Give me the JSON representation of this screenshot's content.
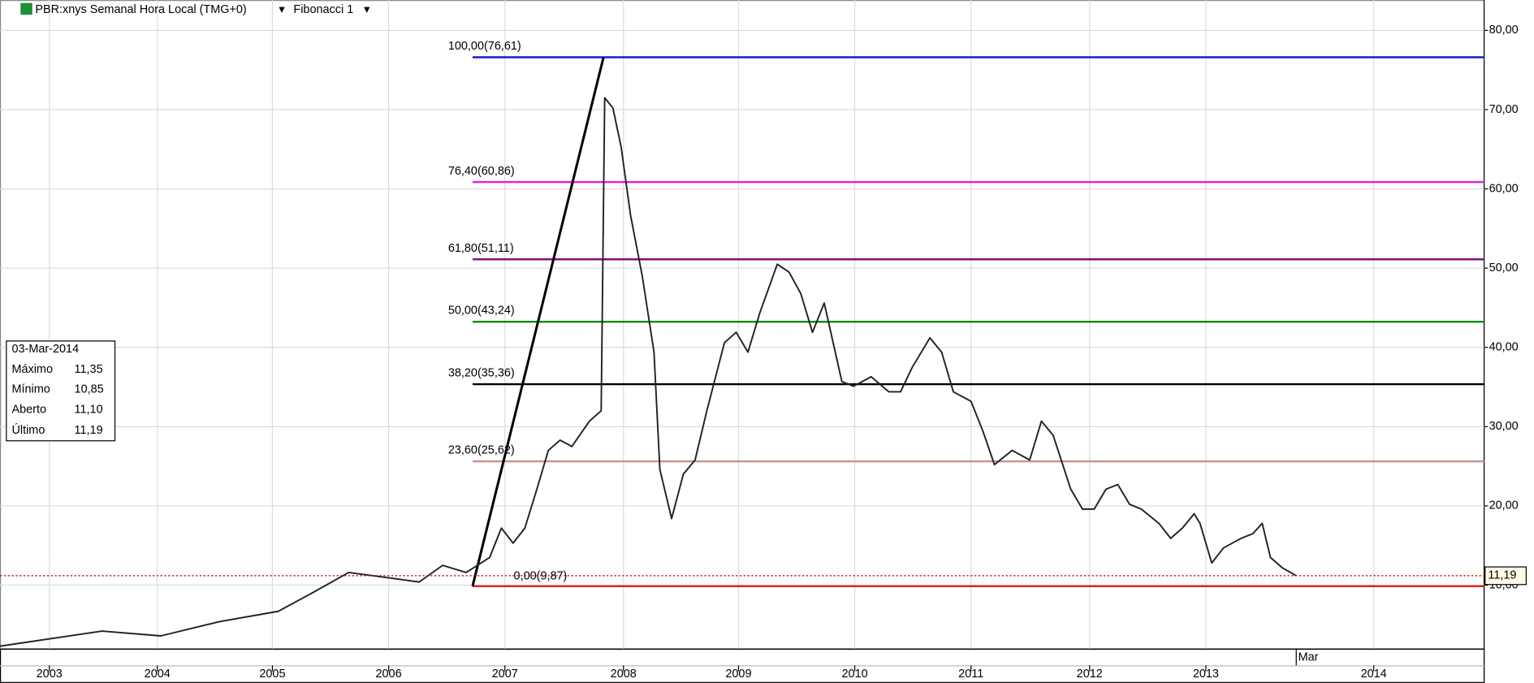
{
  "chart_data": {
    "type": "line",
    "title": "PBR:xnys Semanal Hora Local (TMG+0)",
    "study": "Fibonacci 1",
    "x": [
      2003.13,
      2004.0,
      2004.5,
      2005.0,
      2005.5,
      2005.8,
      2006.1,
      2006.4,
      2006.7,
      2006.9,
      2007.1,
      2007.3,
      2007.4,
      2007.5,
      2007.6,
      2007.7,
      2007.8,
      2007.9,
      2008.0,
      2008.15,
      2008.25,
      2008.28,
      2008.35,
      2008.42,
      2008.5,
      2008.6,
      2008.7,
      2008.75,
      2008.85,
      2008.95,
      2009.05,
      2009.15,
      2009.3,
      2009.4,
      2009.5,
      2009.6,
      2009.75,
      2009.85,
      2009.95,
      2010.05,
      2010.15,
      2010.3,
      2010.4,
      2010.55,
      2010.7,
      2010.8,
      2010.9,
      2011.05,
      2011.15,
      2011.25,
      2011.4,
      2011.5,
      2011.6,
      2011.75,
      2011.9,
      2012.0,
      2012.1,
      2012.25,
      2012.35,
      2012.45,
      2012.55,
      2012.65,
      2012.75,
      2012.85,
      2013.0,
      2013.1,
      2013.2,
      2013.3,
      2013.35,
      2013.45,
      2013.55,
      2013.7,
      2013.8,
      2013.88,
      2013.95,
      2014.05,
      2014.17
    ],
    "values": [
      2.3,
      4.2,
      3.6,
      5.4,
      6.7,
      9.1,
      11.6,
      11.0,
      10.4,
      12.5,
      11.6,
      13.5,
      17.2,
      15.3,
      17.2,
      22,
      27,
      28.3,
      27.5,
      30.7,
      32,
      71.5,
      70.2,
      65.3,
      56.7,
      49,
      39.4,
      24.6,
      18.4,
      24,
      25.8,
      32,
      40.6,
      41.9,
      39.4,
      44.3,
      50.5,
      49.5,
      46.8,
      41.9,
      45.6,
      35.7,
      35.1,
      36.3,
      34.4,
      34.4,
      37.5,
      41.2,
      39.4,
      34.4,
      33.2,
      29.5,
      25.2,
      27,
      25.8,
      30.7,
      28.9,
      22.1,
      19.6,
      19.6,
      22.1,
      22.7,
      20.2,
      19.6,
      17.8,
      15.9,
      17.2,
      19.0,
      17.8,
      12.8,
      14.7,
      15.9,
      16.5,
      17.8,
      13.5,
      12.2,
      11.19
    ],
    "color": "#222222",
    "xlim": [
      2003.13,
      2015.77
    ],
    "ylim": [
      1.98,
      83.83
    ],
    "xticks": [
      {
        "value": 2003.55,
        "label": "2003"
      },
      {
        "value": 2004.47,
        "label": "2004"
      },
      {
        "value": 2005.45,
        "label": "2005"
      },
      {
        "value": 2006.44,
        "label": "2006"
      },
      {
        "value": 2007.43,
        "label": "2007"
      },
      {
        "value": 2008.44,
        "label": "2008"
      },
      {
        "value": 2009.42,
        "label": "2009"
      },
      {
        "value": 2010.41,
        "label": "2010"
      },
      {
        "value": 2011.4,
        "label": "2011"
      },
      {
        "value": 2012.41,
        "label": "2012"
      },
      {
        "value": 2013.4,
        "label": "2013"
      },
      {
        "value": 2014.83,
        "label": "2014"
      }
    ],
    "month_ticks": [
      {
        "value": 2014.17,
        "label": "Mar"
      }
    ],
    "yticks": [
      {
        "value": 10,
        "label": "10,00"
      },
      {
        "value": 20,
        "label": "20,00"
      },
      {
        "value": 30,
        "label": "30,00"
      },
      {
        "value": 40,
        "label": "40,00"
      },
      {
        "value": 50,
        "label": "50,00"
      },
      {
        "value": 60,
        "label": "60,00"
      },
      {
        "value": 70,
        "label": "70,00"
      },
      {
        "value": 80,
        "label": "80,00"
      }
    ],
    "grid": true,
    "fib_anchor": {
      "x": [
        2007.155,
        2008.27
      ],
      "y": [
        9.87,
        76.61
      ]
    },
    "fib_levels": [
      {
        "label": "100,00(76,61)",
        "value": 76.61,
        "color": "#1a1acc"
      },
      {
        "label": "76,40(60,86)",
        "value": 60.86,
        "color": "#e61ee6"
      },
      {
        "label": "61,80(51,11)",
        "value": 51.11,
        "color": "#800080"
      },
      {
        "label": "50,00(43,24)",
        "value": 43.24,
        "color": "#118811"
      },
      {
        "label": "38,20(35,36)",
        "value": 35.36,
        "color": "#000000"
      },
      {
        "label": "23,60(25,62)",
        "value": 25.62,
        "color": "#c89090"
      },
      {
        "label": "0,00(9,87)",
        "value": 9.87,
        "color": "#dd2222"
      }
    ],
    "current_price": {
      "value": 11.19,
      "label": "11,19",
      "color": "#cc0000"
    }
  },
  "info_box": {
    "date": "03-Mar-2014",
    "rows": [
      {
        "label": "Máximo",
        "value": "11,35"
      },
      {
        "label": "Mínimo",
        "value": "10,85"
      },
      {
        "label": "Aberto",
        "value": "11,10"
      },
      {
        "label": "Último",
        "value": "11,19"
      }
    ]
  }
}
